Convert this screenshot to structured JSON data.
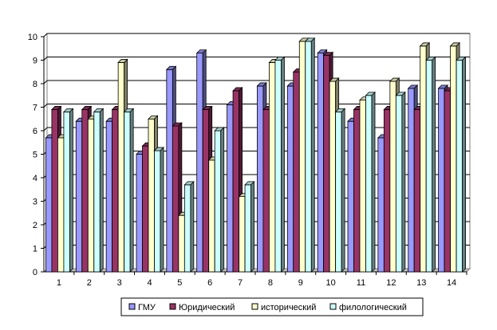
{
  "chart_data": {
    "type": "bar",
    "style": "3d-clustered-column",
    "categories": [
      "1",
      "2",
      "3",
      "4",
      "5",
      "6",
      "7",
      "8",
      "9",
      "10",
      "11",
      "12",
      "13",
      "14"
    ],
    "ylim": [
      0,
      10
    ],
    "yticks": [
      "0",
      "1",
      "2",
      "3",
      "4",
      "5",
      "6",
      "7",
      "8",
      "9",
      "10"
    ],
    "grid": true,
    "legend_position": "bottom",
    "series": [
      {
        "name": "ГМУ",
        "color": "#9999ff",
        "values": [
          5.7,
          6.4,
          6.4,
          5.0,
          8.6,
          9.3,
          7.1,
          7.9,
          7.9,
          9.3,
          6.4,
          5.7,
          7.8,
          7.8
        ]
      },
      {
        "name": "Юридический",
        "color": "#993366",
        "values": [
          6.9,
          6.9,
          6.9,
          5.35,
          6.2,
          6.9,
          7.7,
          6.9,
          8.5,
          9.2,
          6.9,
          6.9,
          6.9,
          7.7
        ]
      },
      {
        "name": "исторический",
        "color": "#ffffcc",
        "values": [
          5.7,
          6.5,
          8.9,
          6.5,
          2.4,
          4.75,
          3.2,
          8.9,
          9.8,
          8.1,
          7.3,
          8.1,
          9.6,
          9.6
        ]
      },
      {
        "name": "филологический",
        "color": "#ccffff",
        "values": [
          6.8,
          6.8,
          6.8,
          5.15,
          3.7,
          6.0,
          3.7,
          9.0,
          9.8,
          6.8,
          7.5,
          7.5,
          9.0,
          9.0
        ]
      }
    ]
  }
}
